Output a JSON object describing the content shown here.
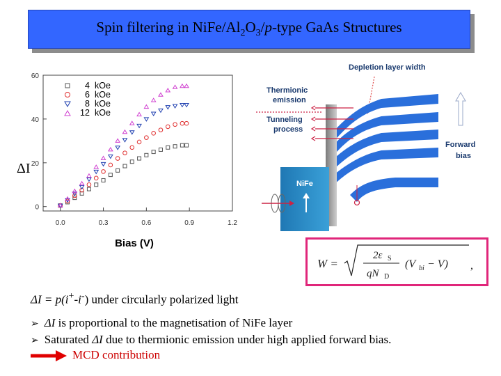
{
  "slide": {
    "title": {
      "prefix": "Spin filtering in NiFe/Al",
      "sub1": "2",
      "mid": "O",
      "sub2": "3",
      "slash": "/",
      "italic": "p",
      "suffix": "-type GaAs Structures"
    },
    "plot": {
      "y_axis_label": "ΔI",
      "y_ticks": [
        "0",
        "20",
        "40",
        "60"
      ],
      "x_ticks": [
        "0.0",
        "0.3",
        "0.6",
        "0.9",
        "1.2"
      ],
      "x_axis_label": "Bias (V)",
      "legend": [
        {
          "value": "4",
          "unit": "kOe"
        },
        {
          "value": "6",
          "unit": "kOe"
        },
        {
          "value": "8",
          "unit": "kOe"
        },
        {
          "value": "12",
          "unit": "kOe"
        }
      ]
    },
    "band_diagram": {
      "depletion_label": "Depletion layer width",
      "thermionic_l1": "Thermionic",
      "thermionic_l2": "emission",
      "tunneling_l1": "Tunneling",
      "tunneling_l2": "process",
      "forward_l1": "Forward",
      "forward_l2": "bias",
      "metal_label": "NiFe"
    },
    "equation": {
      "lhs": "W =",
      "num": "2ε",
      "num_sub": "S",
      "den": "qN",
      "den_sub": "D",
      "paren": "(V",
      "paren_sub": "bi",
      "paren_tail": " − V)",
      "tail": ","
    },
    "text": {
      "line1_di": "ΔI",
      "line1_eq": " = p(i",
      "line1_sup1": "+",
      "line1_mid": "-i",
      "line1_sup2": "-",
      "line1_rest": ") under circularly polarized light",
      "bullet1_di": "ΔI",
      "bullet1_rest": " is proportional to the magnetisation of NiFe layer",
      "bullet2_a": "Saturated ",
      "bullet2_di": "ΔI",
      "bullet2_rest": " due to thermionic emission under high applied forward bias.",
      "mcd": "MCD contribution"
    },
    "colors": {
      "title_bg": "#3366ff",
      "series_4kOe": "#555555",
      "series_6kOe": "#e03030",
      "series_8kOe": "#2040b0",
      "series_12kOe": "#d040d0",
      "band_blue": "#2a6fdb",
      "box_border": "#e0267a",
      "mcd_red": "#cc0000"
    }
  },
  "chart_data": {
    "type": "scatter",
    "x": [
      0.0,
      0.05,
      0.1,
      0.15,
      0.2,
      0.25,
      0.3,
      0.35,
      0.4,
      0.45,
      0.5,
      0.55,
      0.6,
      0.65,
      0.7,
      0.75,
      0.8,
      0.85,
      0.88
    ],
    "series": [
      {
        "name": "4 kOe",
        "values": [
          0.5,
          2,
          4,
          6,
          8,
          10,
          12,
          14.5,
          16.5,
          18.5,
          20.5,
          22,
          23.5,
          25,
          26,
          27,
          27.5,
          28,
          28
        ]
      },
      {
        "name": "6 kOe",
        "values": [
          0.5,
          2.5,
          5,
          7.5,
          10,
          13,
          16,
          19,
          22,
          24.5,
          27,
          29.5,
          31.5,
          33.5,
          35,
          36.5,
          37.5,
          38,
          38
        ]
      },
      {
        "name": "8 kOe",
        "values": [
          0.5,
          3,
          6,
          9,
          12.5,
          16,
          19.5,
          23,
          27,
          30.5,
          34,
          37,
          40,
          42.5,
          44,
          45.5,
          46,
          46.5,
          46.5
        ]
      },
      {
        "name": "12 kOe",
        "values": [
          0.5,
          3.5,
          7,
          10.5,
          14,
          18,
          22,
          26,
          30,
          34,
          38,
          42,
          45.5,
          48.5,
          51,
          53,
          54.5,
          55,
          55
        ]
      }
    ],
    "xlabel": "Bias (V)",
    "ylabel": "ΔI",
    "xlim": [
      -0.12,
      1.2
    ],
    "ylim": [
      -2,
      60
    ],
    "legend_position": "top-left"
  }
}
